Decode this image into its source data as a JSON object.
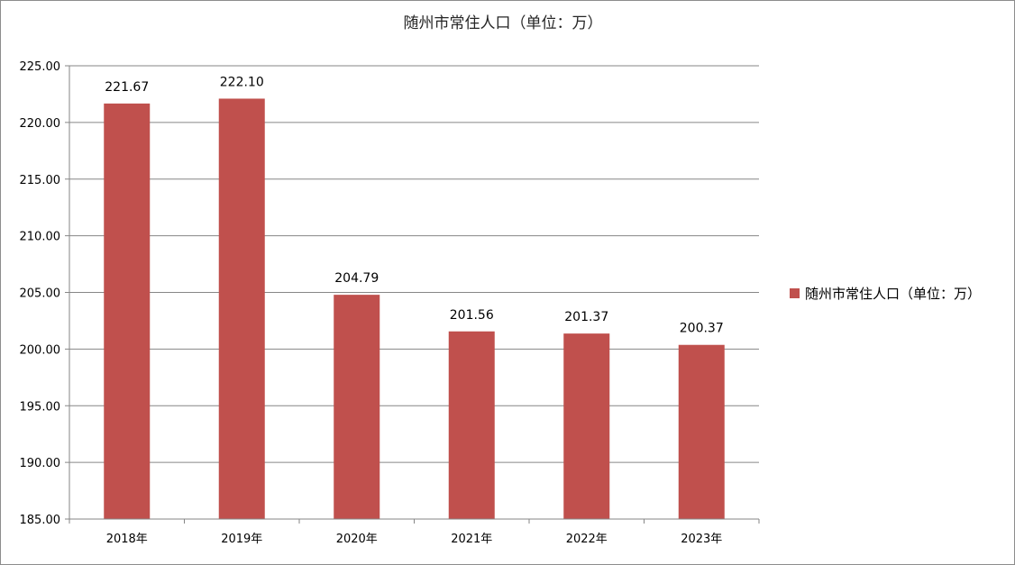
{
  "chart_data": {
    "type": "bar",
    "title": "随州市常住人口（单位：万）",
    "categories": [
      "2018年",
      "2019年",
      "2020年",
      "2021年",
      "2022年",
      "2023年"
    ],
    "series": [
      {
        "name": "随州市常住人口（单位：万）",
        "values": [
          221.67,
          222.1,
          204.79,
          201.56,
          201.37,
          200.37
        ],
        "data_labels": [
          "221.67",
          "222.10",
          "204.79",
          "201.56",
          "201.37",
          "200.37"
        ],
        "color": "#c0504d"
      }
    ],
    "yticks": [
      "185.00",
      "190.00",
      "195.00",
      "200.00",
      "205.00",
      "210.00",
      "215.00",
      "220.00",
      "225.00"
    ],
    "ylim": [
      185,
      225
    ],
    "grid": true,
    "legend_position": "right",
    "xlabel": "",
    "ylabel": ""
  }
}
